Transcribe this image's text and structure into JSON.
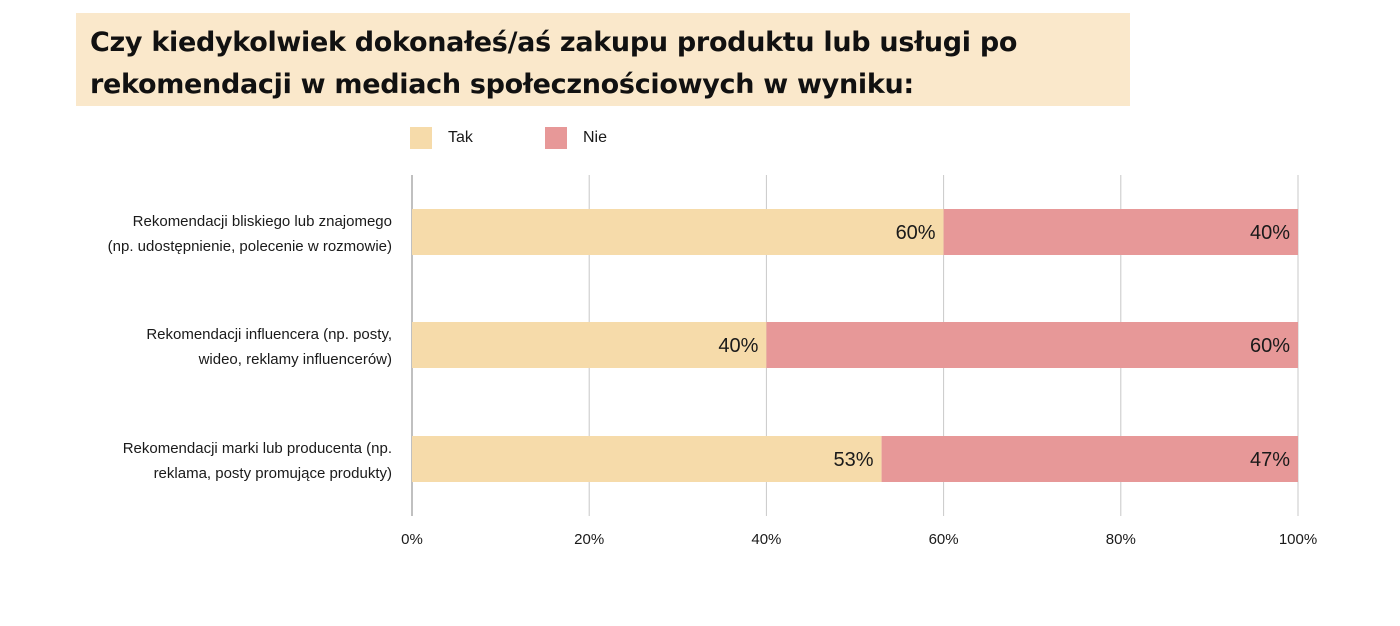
{
  "title": "Czy kiedykolwiek dokonałeś/aś zakupu produktu lub usługi po rekomendacji w mediach społecznościowych w wyniku:",
  "title_lines": [
    "Czy kiedykolwiek dokonałeś/aś zakupu produktu lub usługi po",
    "rekomendacji w mediach społecznościowych w wyniku:"
  ],
  "colors": {
    "title_background": "#fae8cb",
    "tak": "#f6dbaa",
    "nie": "#e79898",
    "grid": "#c8c8c8",
    "axis": "#808080"
  },
  "chart_data": {
    "type": "bar",
    "orientation": "horizontal",
    "stacked": true,
    "percent_stacked": true,
    "categories": [
      [
        "Rekomendacji bliskiego lub znajomego",
        "(np. udostępnienie, polecenie w rozmowie)"
      ],
      [
        "Rekomendacji influencera (np. posty,",
        "wideo, reklamy influencerów)"
      ],
      [
        "Rekomendacji marki lub producenta (np.",
        "reklama, posty promujące produkty)"
      ]
    ],
    "series": [
      {
        "name": "Tak",
        "values": [
          60,
          40,
          53
        ],
        "labels": [
          "60%",
          "40%",
          "53%"
        ]
      },
      {
        "name": "Nie",
        "values": [
          40,
          60,
          47
        ],
        "labels": [
          "40%",
          "60%",
          "47%"
        ]
      }
    ],
    "xlim": [
      0,
      100
    ],
    "xticks": [
      0,
      20,
      40,
      60,
      80,
      100
    ],
    "xtick_labels": [
      "0%",
      "20%",
      "40%",
      "60%",
      "80%",
      "100%"
    ],
    "grid": true,
    "legend_position": "top"
  }
}
